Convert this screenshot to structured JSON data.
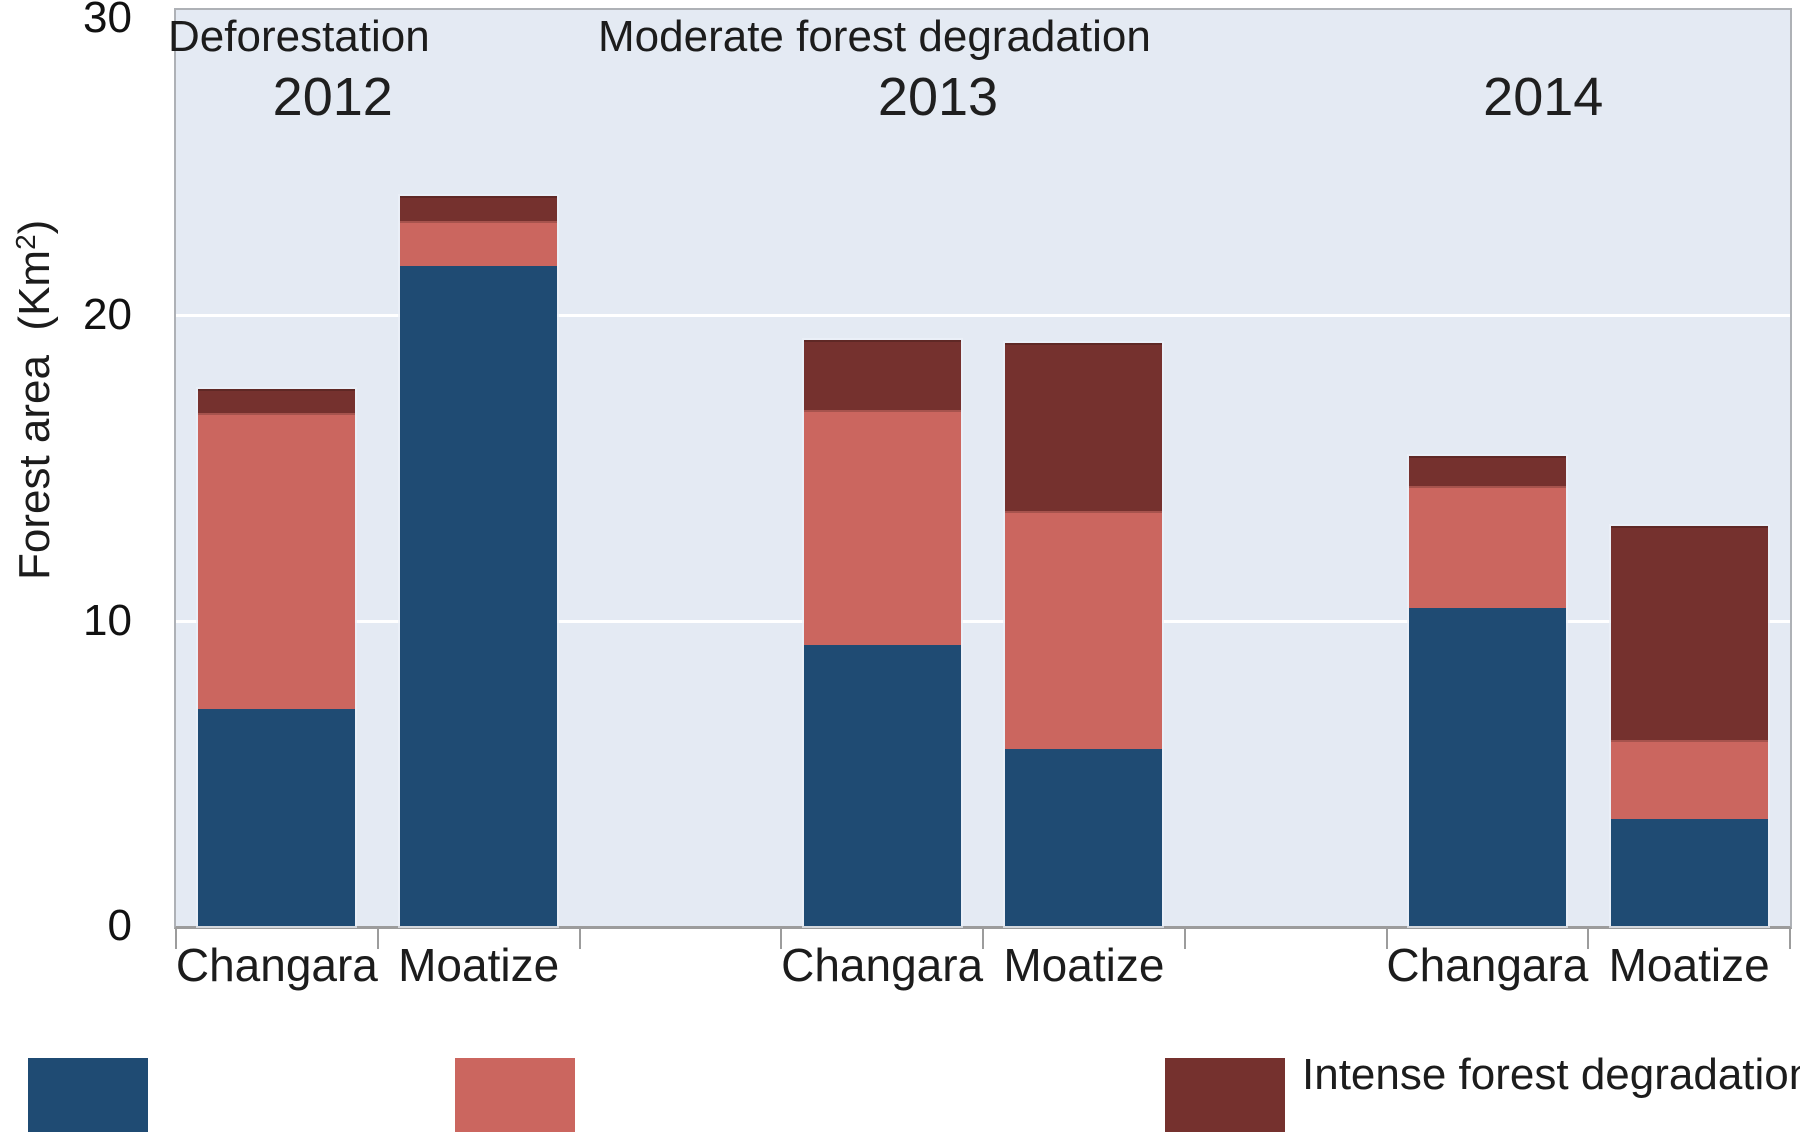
{
  "y_axis": {
    "title_main": "Forest area  (Km",
    "title_sup": "2",
    "title_close": ")",
    "tick_labels": [
      "30",
      "20",
      "10",
      "0"
    ],
    "tick_values": [
      30,
      20,
      10,
      0
    ]
  },
  "x_axis": {
    "year_labels": [
      "2012",
      "2013",
      "2014"
    ],
    "category_labels": [
      "Changara",
      "Moatize",
      "Changara",
      "Moatize",
      "Changara",
      "Moatize"
    ]
  },
  "chart_data": {
    "type": "bar",
    "stacked": true,
    "title": "",
    "xlabel": "",
    "ylabel": "Forest area (Km²)",
    "ylim": [
      0,
      30
    ],
    "yticks": [
      0,
      10,
      20,
      30
    ],
    "grid": "horizontal white gridlines at 10 and 20",
    "legend_position": "bottom",
    "year_groups": [
      "2012",
      "2013",
      "2014"
    ],
    "categories": [
      "2012 Changara",
      "2012 Moatize",
      "2013 Changara",
      "2013 Moatize",
      "2014 Changara",
      "2014 Moatize"
    ],
    "series": [
      {
        "name": "Deforestation",
        "color": "#1F4B73",
        "values": [
          7.1,
          21.6,
          9.2,
          5.8,
          10.4,
          3.5
        ]
      },
      {
        "name": "Moderate forest degradation",
        "color": "#CB665F",
        "values": [
          9.7,
          1.5,
          7.7,
          7.8,
          4.0,
          2.6
        ]
      },
      {
        "name": "Intense forest degradation",
        "color": "#75312E",
        "values": [
          0.8,
          0.8,
          2.3,
          5.5,
          1.0,
          7.0
        ]
      }
    ],
    "stack_totals": [
      17.6,
      23.9,
      19.2,
      19.1,
      15.4,
      13.1
    ]
  },
  "colors": {
    "plot_background": "#E4EAF3",
    "plot_border": "#AEB1B6",
    "axis_line": "#9C9C9C",
    "gridline": "#FFFFFF",
    "text": "#1C1C1C"
  }
}
